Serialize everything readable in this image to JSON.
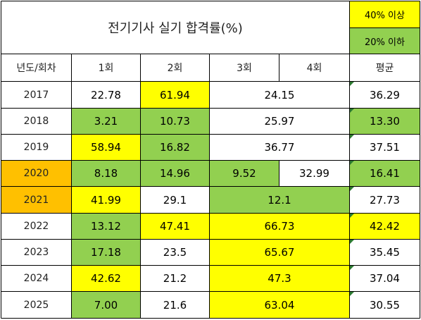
{
  "title": "전기기사 실기 합격률(%)",
  "legend": {
    "high": "40% 이상",
    "low": "20% 이하"
  },
  "headers": {
    "year": "년도/회차",
    "r1": "1회",
    "r2": "2회",
    "r3": "3회",
    "r4": "4회",
    "avg": "평균"
  },
  "colors": {
    "yellow": "#ffff00",
    "green": "#92d050",
    "orange": "#ffc000"
  },
  "rows": [
    {
      "year": "2017",
      "r1": "22.78",
      "r2": "61.94",
      "r34": "24.15",
      "avg": "36.29"
    },
    {
      "year": "2018",
      "r1": "3.21",
      "r2": "10.73",
      "r34": "25.97",
      "avg": "13.30"
    },
    {
      "year": "2019",
      "r1": "58.94",
      "r2": "16.82",
      "r34": "36.77",
      "avg": "37.51"
    },
    {
      "year": "2020",
      "r1": "8.18",
      "r2": "14.96",
      "r3": "9.52",
      "r4": "32.99",
      "avg": "16.41"
    },
    {
      "year": "2021",
      "r1": "41.99",
      "r2": "29.1",
      "r34": "12.1",
      "avg": "27.73"
    },
    {
      "year": "2022",
      "r1": "13.12",
      "r2": "47.41",
      "r34": "66.73",
      "avg": "42.42"
    },
    {
      "year": "2023",
      "r1": "17.18",
      "r2": "23.5",
      "r34": "65.67",
      "avg": "35.45"
    },
    {
      "year": "2024",
      "r1": "42.62",
      "r2": "21.2",
      "r34": "47.3",
      "avg": "37.04"
    },
    {
      "year": "2025",
      "r1": "7.00",
      "r2": "21.6",
      "r34": "63.04",
      "avg": "30.55"
    }
  ]
}
